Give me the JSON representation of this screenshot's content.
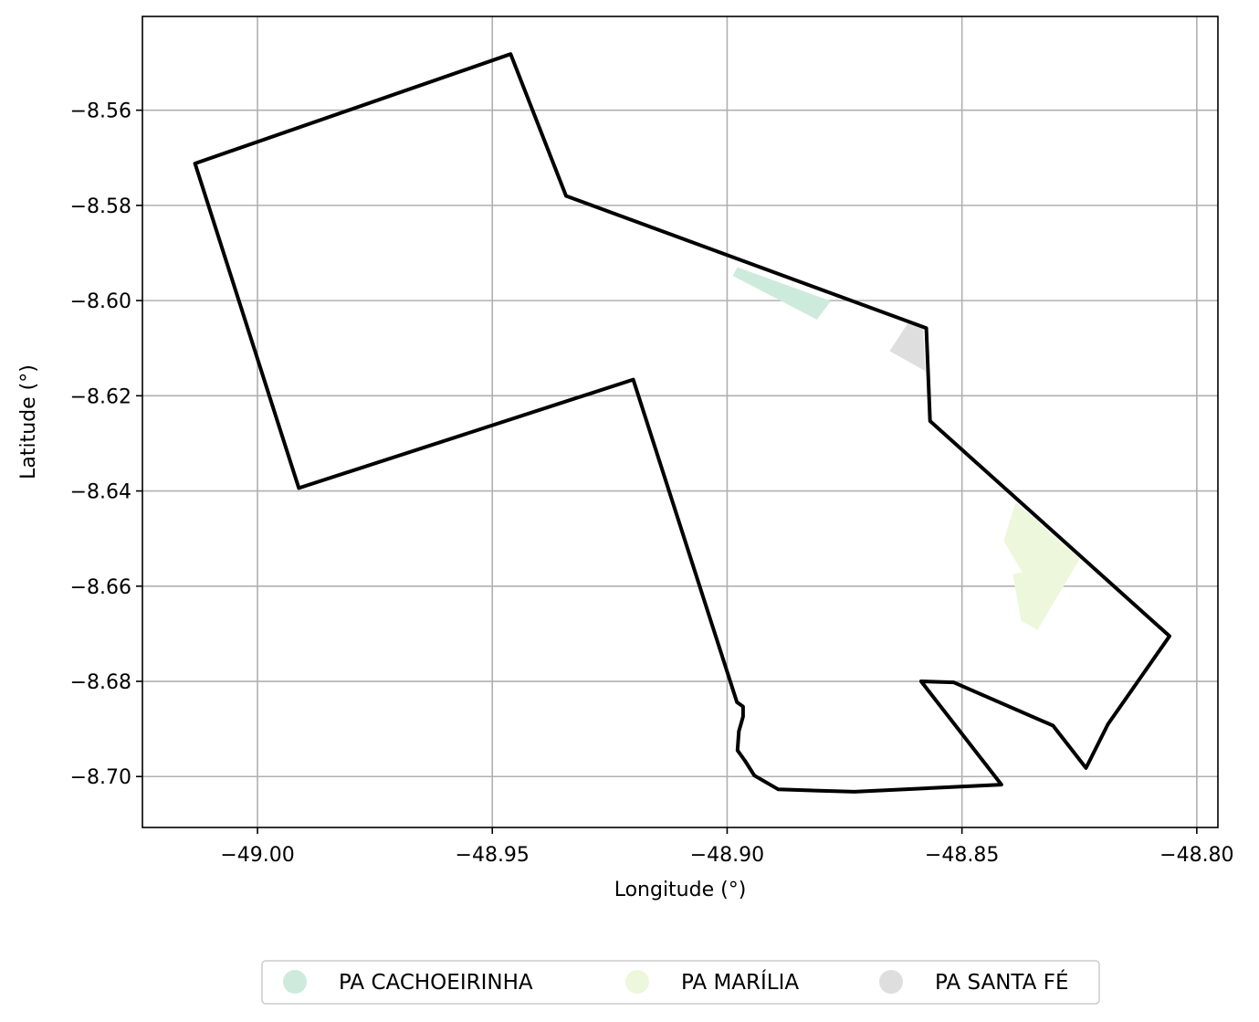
{
  "chart_data": {
    "type": "map",
    "xlabel": "Longitude (°)",
    "ylabel": "Latitude (°)",
    "xlim": [
      -49.0245,
      -48.7955
    ],
    "ylim": [
      -8.7107,
      -8.5403
    ],
    "grid": true,
    "x_ticks": [
      {
        "value": -49.0,
        "label": "−49.00"
      },
      {
        "value": -48.95,
        "label": "−48.95"
      },
      {
        "value": -48.9,
        "label": "−48.90"
      },
      {
        "value": -48.85,
        "label": "−48.85"
      },
      {
        "value": -48.8,
        "label": "−48.80"
      }
    ],
    "y_ticks": [
      {
        "value": -8.56,
        "label": "−8.56"
      },
      {
        "value": -8.58,
        "label": "−8.58"
      },
      {
        "value": -8.6,
        "label": "−8.60"
      },
      {
        "value": -8.62,
        "label": "−8.62"
      },
      {
        "value": -8.64,
        "label": "−8.64"
      },
      {
        "value": -8.66,
        "label": "−8.66"
      },
      {
        "value": -8.68,
        "label": "−8.68"
      },
      {
        "value": -8.7,
        "label": "−8.70"
      }
    ],
    "boundary": {
      "color": "#000000",
      "coords": [
        [
          -49.0133,
          -8.5712
        ],
        [
          -48.9461,
          -8.5482
        ],
        [
          -48.9343,
          -8.578
        ],
        [
          -48.8576,
          -8.6058
        ],
        [
          -48.8568,
          -8.6253
        ],
        [
          -48.8058,
          -8.6705
        ],
        [
          -48.8189,
          -8.689
        ],
        [
          -48.8236,
          -8.6982
        ],
        [
          -48.8306,
          -8.6893
        ],
        [
          -48.8518,
          -8.6802
        ],
        [
          -48.8587,
          -8.68
        ],
        [
          -48.8416,
          -8.7017
        ],
        [
          -48.8729,
          -8.7032
        ],
        [
          -48.8891,
          -8.7027
        ],
        [
          -48.8942,
          -8.6998
        ],
        [
          -48.8962,
          -8.6967
        ],
        [
          -48.8978,
          -8.6945
        ],
        [
          -48.8975,
          -8.6905
        ],
        [
          -48.8966,
          -8.6874
        ],
        [
          -48.8966,
          -8.6853
        ],
        [
          -48.8979,
          -8.6844
        ],
        [
          -48.92,
          -8.6166
        ],
        [
          -48.9912,
          -8.6394
        ],
        [
          -49.0133,
          -8.5712
        ]
      ]
    },
    "series": [
      {
        "name": "PA CACHOEIRINHA",
        "color": "#cdebdc",
        "coords": [
          [
            -48.8978,
            -8.593
          ],
          [
            -48.8779,
            -8.6001
          ],
          [
            -48.8809,
            -8.604
          ],
          [
            -48.8988,
            -8.5948
          ],
          [
            -48.8978,
            -8.593
          ]
        ]
      },
      {
        "name": "PA MARÍLIA",
        "color": "#edf7dc",
        "coords": [
          [
            -48.8386,
            -8.6424
          ],
          [
            -48.8249,
            -8.6542
          ],
          [
            -48.8339,
            -8.6692
          ],
          [
            -48.8374,
            -8.6673
          ],
          [
            -48.8392,
            -8.6575
          ],
          [
            -48.8372,
            -8.657
          ],
          [
            -48.8411,
            -8.6505
          ],
          [
            -48.8386,
            -8.6424
          ]
        ]
      },
      {
        "name": "PA SANTA FÉ",
        "color": "#dedede",
        "coords": [
          [
            -48.8612,
            -8.6043
          ],
          [
            -48.8583,
            -8.6056
          ],
          [
            -48.8578,
            -8.6148
          ],
          [
            -48.8654,
            -8.6106
          ],
          [
            -48.8612,
            -8.6043
          ]
        ]
      }
    ],
    "legend": {
      "position": "bottom-center",
      "entries": [
        "PA CACHOEIRINHA",
        "PA MARÍLIA",
        "PA SANTA FÉ"
      ]
    }
  }
}
